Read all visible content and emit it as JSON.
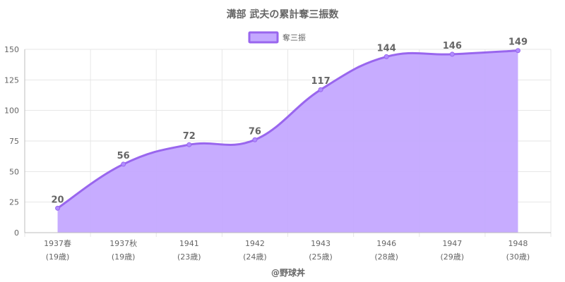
{
  "chart_data": {
    "type": "area",
    "title": "溝部 武夫の累計奪三振数",
    "legend": {
      "label": "奪三振",
      "position": "top-center"
    },
    "categories": [
      [
        "1937春",
        "(19歳)"
      ],
      [
        "1937秋",
        "(19歳)"
      ],
      [
        "1941",
        "(23歳)"
      ],
      [
        "1942",
        "(24歳)"
      ],
      [
        "1943",
        "(25歳)"
      ],
      [
        "1946",
        "(28歳)"
      ],
      [
        "1947",
        "(29歳)"
      ],
      [
        "1948",
        "(30歳)"
      ]
    ],
    "series": [
      {
        "name": "奪三振",
        "values": [
          20,
          56,
          72,
          76,
          117,
          144,
          146,
          149
        ]
      }
    ],
    "yticks": [
      0,
      25,
      50,
      75,
      100,
      125,
      150
    ],
    "ylim": [
      0,
      150
    ],
    "grid": true,
    "colors": {
      "line": "#9966ee",
      "fill": "#c4a8ff",
      "point": "#b08cff",
      "legend_fill": "#c4a8ff",
      "legend_border": "#9966ee"
    }
  },
  "credit": "@野球丼"
}
